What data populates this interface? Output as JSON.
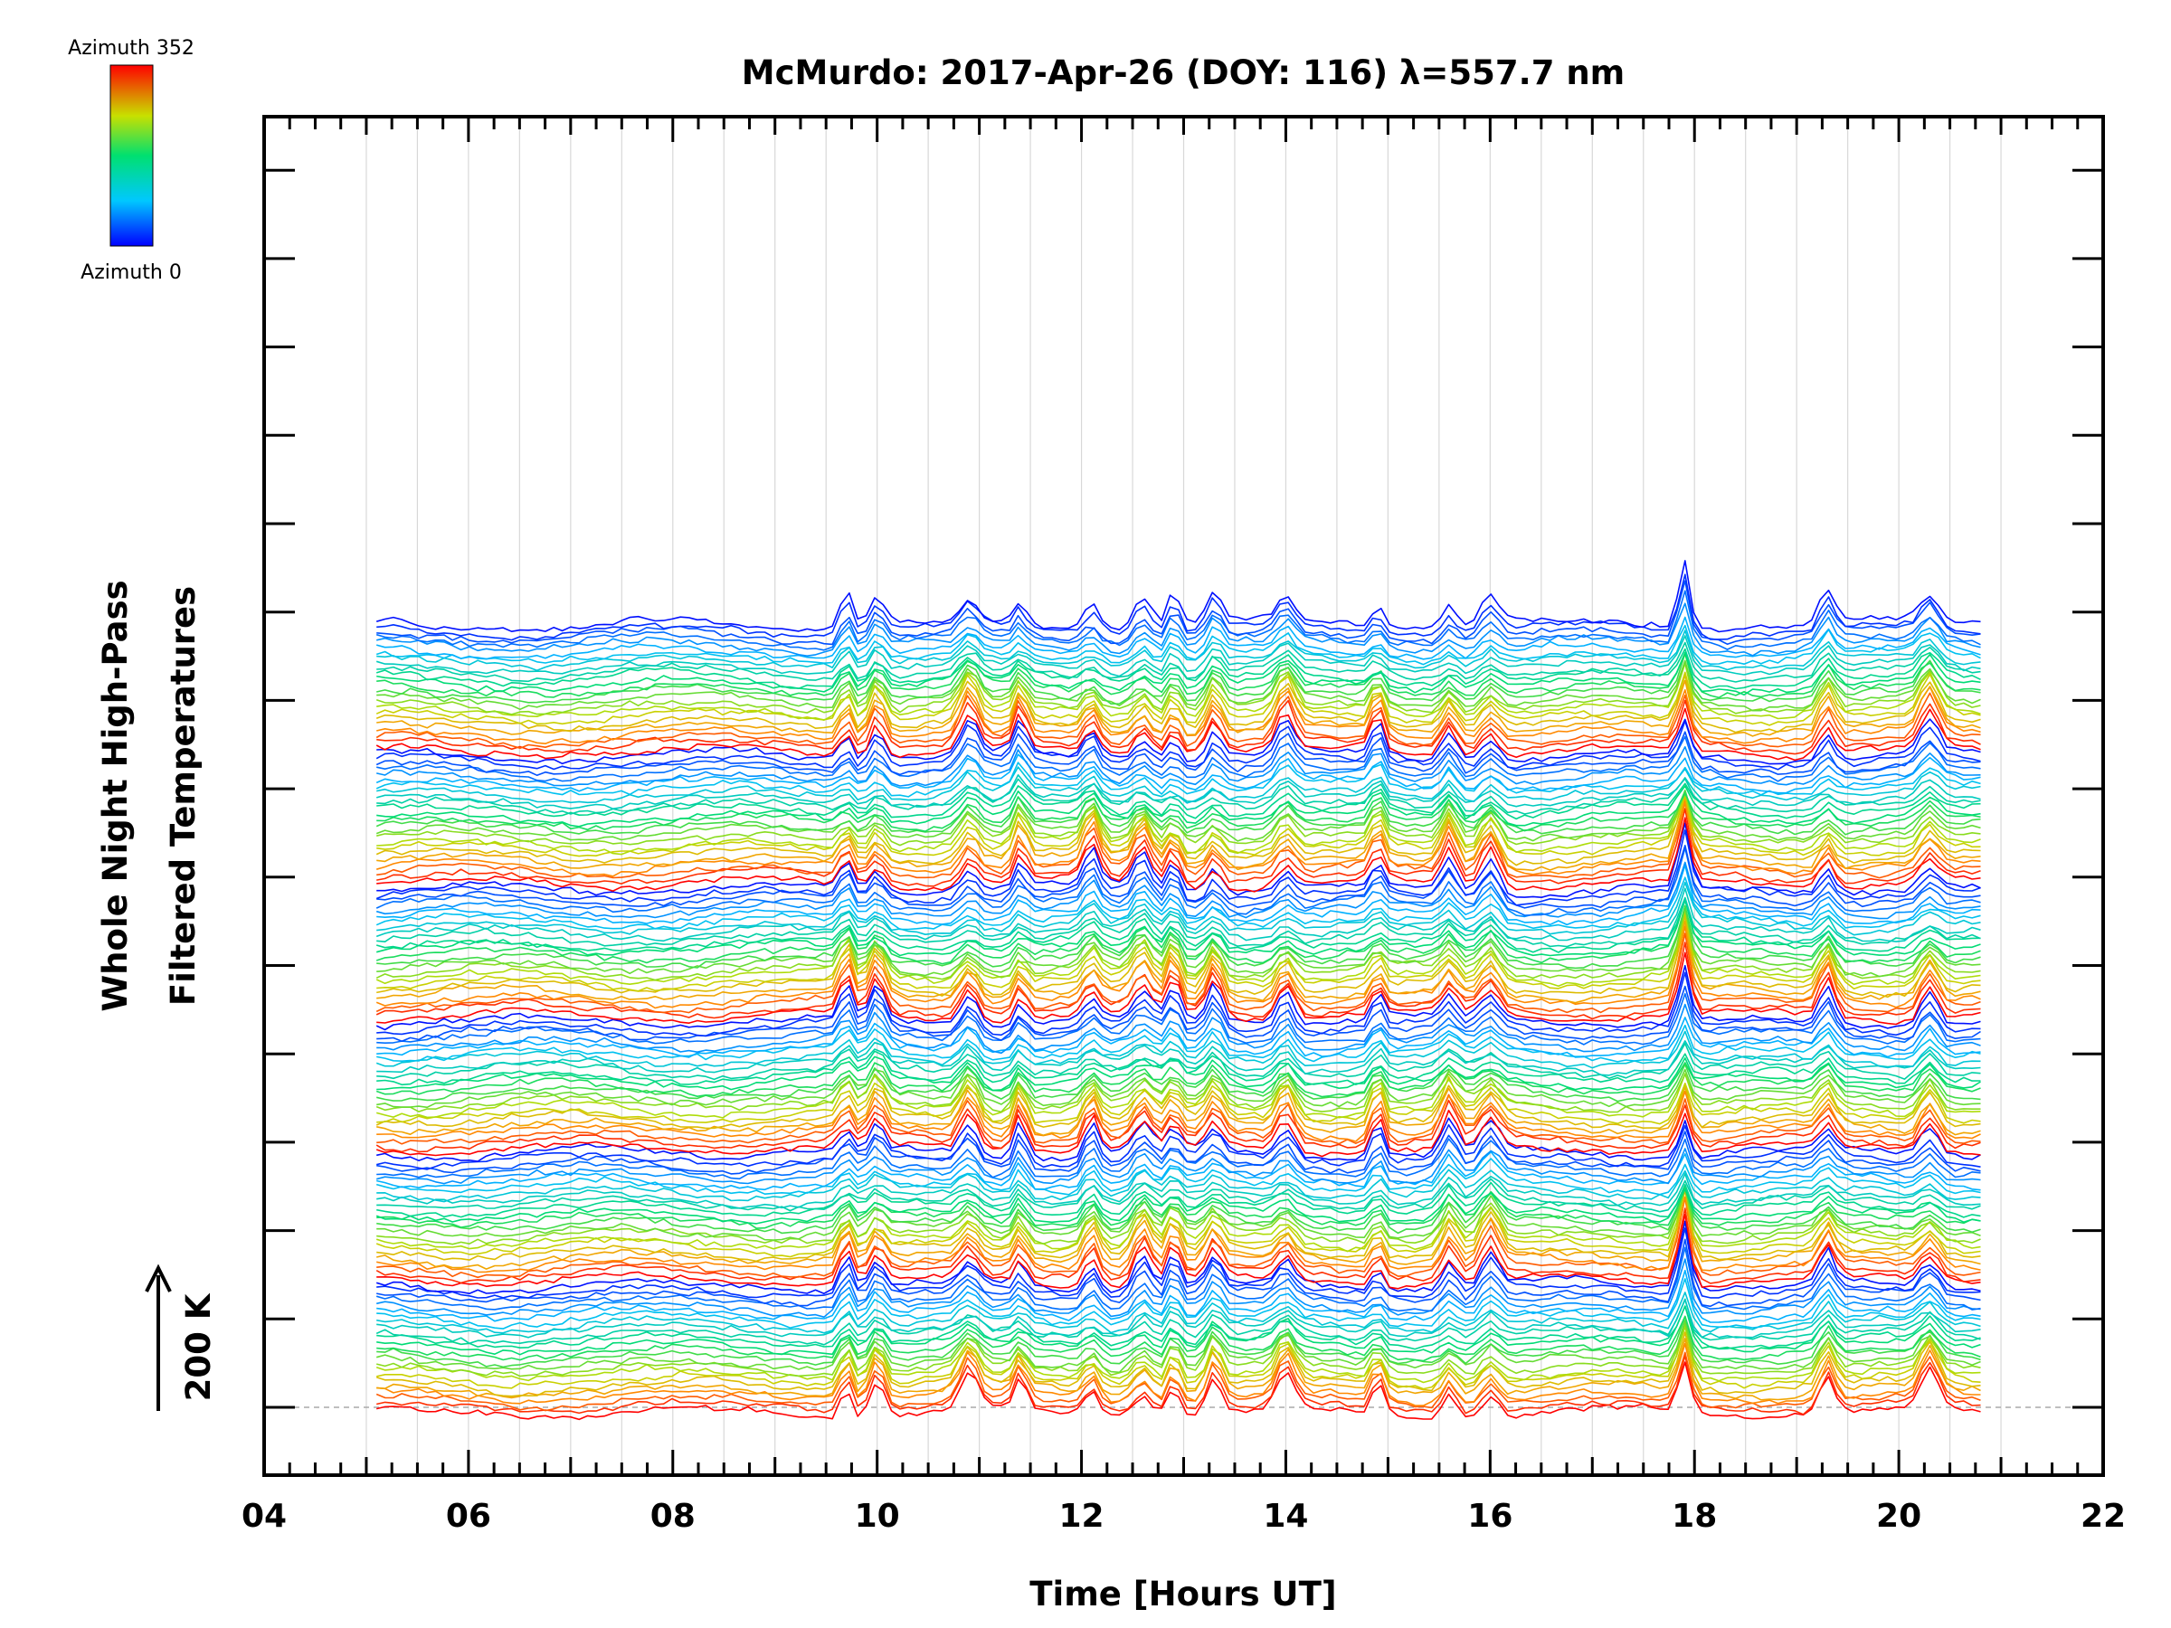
{
  "chart_data": {
    "type": "line",
    "title": "McMurdo: 2017-Apr-26 (DOY: 116) λ=557.7 nm",
    "xlabel": "Time [Hours UT]",
    "ylabel_line1": "Whole Night High-Pass",
    "ylabel_line2": "Filtered Temperatures",
    "xlim": [
      4,
      22
    ],
    "x_tick_labels": [
      "04",
      "06",
      "08",
      "10",
      "12",
      "14",
      "16",
      "18",
      "20",
      "22"
    ],
    "x_data_range": [
      5.1,
      20.8
    ],
    "scale_label": "200 K",
    "colorbar": {
      "top_label": "Azimuth 352",
      "bottom_label": "Azimuth 0"
    },
    "series_count": 144,
    "azimuth_step": 2.46,
    "event_peaks_hours": [
      9.7,
      10.0,
      10.9,
      11.4,
      12.1,
      12.6,
      12.9,
      13.3,
      14.0,
      14.9,
      15.6,
      16.0,
      17.9,
      19.3,
      20.3
    ],
    "colors": {
      "low": "#0000ff",
      "mid": "#00ff00",
      "high": "#ff0000",
      "axis": "#000000",
      "grid": "#d8d8d8"
    }
  }
}
